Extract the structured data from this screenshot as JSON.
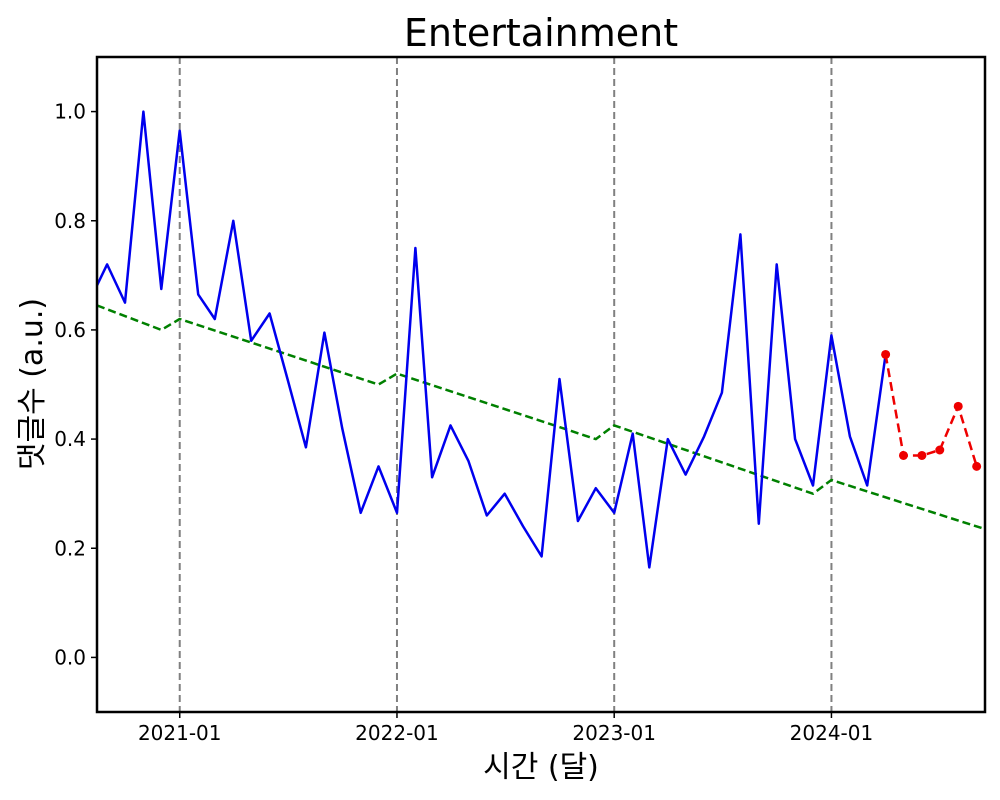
{
  "chart_data": {
    "type": "line",
    "title": "Entertainment",
    "xlabel": "시간 (달)",
    "ylabel": "댓글수 (a.u.)",
    "ylim": [
      -0.1,
      1.1
    ],
    "yticks": [
      0.0,
      0.2,
      0.4,
      0.6,
      0.8,
      1.0
    ],
    "ytick_labels": [
      "0.0",
      "0.2",
      "0.4",
      "0.6",
      "0.8",
      "1.0"
    ],
    "xlim": [
      "2020-08-15",
      "2024-09-15"
    ],
    "xticks": [
      "2021-01-01",
      "2022-01-01",
      "2023-01-01",
      "2024-01-01"
    ],
    "xtick_labels": [
      "2021-01",
      "2022-01",
      "2023-01",
      "2024-01"
    ],
    "vlines": [
      "2021-01-01",
      "2022-01-01",
      "2023-01-01",
      "2024-01-01"
    ],
    "grid": false,
    "series": [
      {
        "role": "observed",
        "color": "#0000ee",
        "style": "solid",
        "x": [
          "2020-08",
          "2020-09",
          "2020-10",
          "2020-11",
          "2020-12",
          "2021-01",
          "2021-02",
          "2021-03",
          "2021-04",
          "2021-05",
          "2021-06",
          "2021-07",
          "2021-08",
          "2021-09",
          "2021-10",
          "2021-11",
          "2021-12",
          "2022-01",
          "2022-02",
          "2022-03",
          "2022-04",
          "2022-05",
          "2022-06",
          "2022-07",
          "2022-08",
          "2022-09",
          "2022-10",
          "2022-11",
          "2022-12",
          "2023-01",
          "2023-02",
          "2023-03",
          "2023-04",
          "2023-05",
          "2023-06",
          "2023-07",
          "2023-08",
          "2023-09",
          "2023-10",
          "2023-11",
          "2023-12",
          "2024-01",
          "2024-02",
          "2024-03",
          "2024-04"
        ],
        "values": [
          0.65,
          0.72,
          0.65,
          1.0,
          0.675,
          0.965,
          0.665,
          0.62,
          0.8,
          0.58,
          0.63,
          0.51,
          0.385,
          0.595,
          0.42,
          0.265,
          0.35,
          0.265,
          0.75,
          0.33,
          0.425,
          0.36,
          0.26,
          0.3,
          0.24,
          0.185,
          0.51,
          0.25,
          0.31,
          0.265,
          0.41,
          0.165,
          0.4,
          0.335,
          0.405,
          0.485,
          0.775,
          0.245,
          0.72,
          0.4,
          0.315,
          0.59,
          0.405,
          0.315,
          0.555
        ]
      },
      {
        "role": "forecast",
        "color": "#ee0000",
        "style": "dashed",
        "markers": true,
        "x": [
          "2024-04",
          "2024-05",
          "2024-06",
          "2024-07",
          "2024-08",
          "2024-09"
        ],
        "values": [
          0.555,
          0.37,
          0.37,
          0.38,
          0.46,
          0.35
        ]
      },
      {
        "role": "trend",
        "color": "#008000",
        "style": "dashed",
        "x": [
          "2020-08-15",
          "2020-12-01",
          "2021-01-01",
          "2021-12-01",
          "2022-01-01",
          "2022-12-01",
          "2023-01-01",
          "2023-12-01",
          "2024-01-01",
          "2024-09-15"
        ],
        "values": [
          0.645,
          0.6,
          0.62,
          0.5,
          0.52,
          0.4,
          0.425,
          0.3,
          0.325,
          0.235
        ]
      }
    ]
  }
}
